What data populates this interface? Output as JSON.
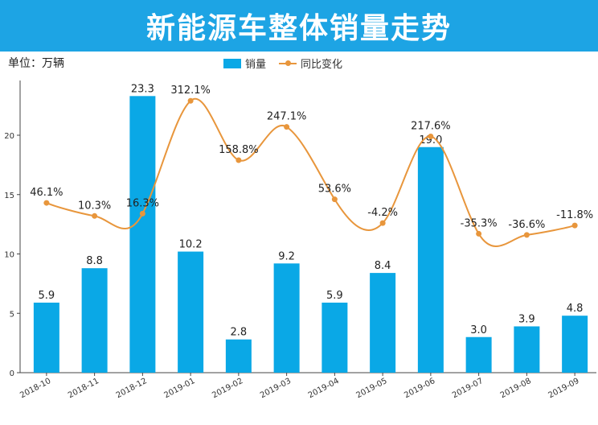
{
  "title": "新能源车整体销量走势",
  "unit": "单位：万辆",
  "legend": {
    "bar": "销量",
    "line": "同比变化"
  },
  "colors": {
    "header": "#1da4e4",
    "bar": "#0aa8e6",
    "line": "#e8963c"
  },
  "chart_data": {
    "type": "bar",
    "categories": [
      "2018-10",
      "2018-11",
      "2018-12",
      "2019-01",
      "2019-02",
      "2019-03",
      "2019-04",
      "2019-05",
      "2019-06",
      "2019-07",
      "2019-08",
      "2019-09"
    ],
    "series": [
      {
        "name": "销量",
        "type": "bar",
        "values": [
          5.9,
          8.8,
          23.3,
          10.2,
          2.8,
          9.2,
          5.9,
          8.4,
          19.0,
          3.0,
          3.9,
          4.8
        ],
        "labels": [
          "5.9",
          "8.8",
          "23.3",
          "10.2",
          "2.8",
          "9.2",
          "5.9",
          "8.4",
          "19.0",
          "3.0",
          "3.9",
          "4.8"
        ]
      },
      {
        "name": "同比变化",
        "type": "line",
        "values": [
          14.3,
          13.2,
          13.4,
          22.9,
          17.9,
          20.7,
          14.6,
          12.6,
          19.9,
          11.7,
          11.6,
          12.4
        ],
        "labels": [
          "46.1%",
          "10.3%",
          "16.3%",
          "312.1%",
          "158.8%",
          "247.1%",
          "53.6%",
          "-4.2%",
          "217.6%",
          "-35.3%",
          "-36.6%",
          "-11.8%"
        ]
      }
    ],
    "yticks": [
      0,
      5,
      10,
      15,
      20
    ],
    "ylim": [
      0,
      24
    ],
    "grid": false,
    "legend_position": "top"
  }
}
